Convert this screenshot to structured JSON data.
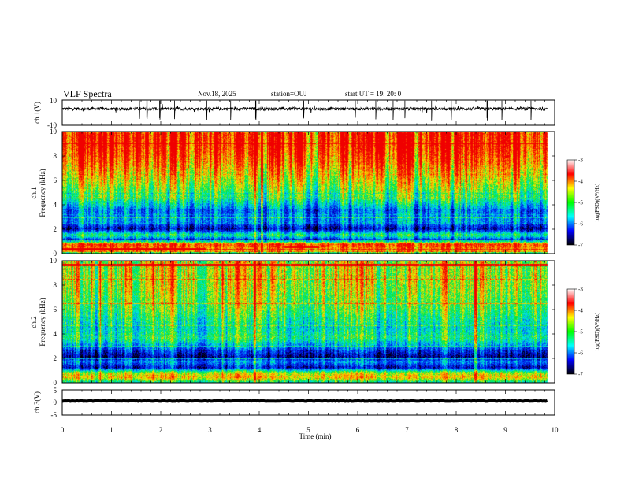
{
  "header": {
    "title": "VLF Spectra",
    "date": "Nov.18, 2025",
    "station": "station=OUJ",
    "start": "start  UT =   19: 20: 0"
  },
  "chart_data": [
    {
      "type": "line",
      "name": "ch1-waveform",
      "ylabel": "ch.1(V)",
      "ylim": [
        -10,
        10
      ],
      "yticks": [
        "10",
        "-10"
      ],
      "xlim": [
        0,
        10
      ],
      "baseline": 3.0,
      "noise_amplitude": 1.2,
      "spikes": [
        1.57,
        1.72,
        1.98,
        2.28,
        2.93,
        3.42,
        3.93,
        4.9,
        5.95,
        6.37,
        6.72,
        6.96,
        7.5,
        7.9,
        8.63,
        8.93,
        9.52
      ],
      "color": "#000000"
    },
    {
      "type": "heatmap",
      "name": "ch1-spectrogram",
      "ylabel": "ch.1\nFrequency (kHz)",
      "xlim": [
        0,
        10
      ],
      "ylim": [
        0,
        10
      ],
      "yticks": [
        "0",
        "2",
        "4",
        "6",
        "8",
        "10"
      ],
      "data_end_x": 9.85,
      "colorbar": {
        "label": "log(PSD)(V²/Hz)",
        "range": [
          -7,
          -3
        ],
        "ticks": [
          "-3",
          "-4",
          "-5",
          "-6",
          "-7"
        ],
        "stops": [
          "#ffffff",
          "#ff0000",
          "#ffff00",
          "#00ff00",
          "#00ffff",
          "#0000ff",
          "#000000"
        ]
      },
      "profile_hot": [
        [
          0,
          0.55
        ],
        [
          0.4,
          0.85
        ],
        [
          0.75,
          0.95
        ],
        [
          1.1,
          0.2
        ],
        [
          1.5,
          0.55
        ],
        [
          2.0,
          0.12
        ],
        [
          2.6,
          0.35
        ],
        [
          3.5,
          0.3
        ],
        [
          4.5,
          0.55
        ],
        [
          6.0,
          0.72
        ],
        [
          7.5,
          0.88
        ],
        [
          8.5,
          0.96
        ],
        [
          10.0,
          1.0
        ]
      ],
      "vertical_events": [
        3.9,
        4.05
      ],
      "hot_patches": [
        [
          0.0,
          2.9,
          0.2,
          0.45
        ],
        [
          4.5,
          5.2,
          0.4,
          0.6
        ]
      ]
    },
    {
      "type": "heatmap",
      "name": "ch2-spectrogram",
      "ylabel": "ch.2\nFrequency (kHz)",
      "xlim": [
        0,
        10
      ],
      "ylim": [
        0,
        10
      ],
      "yticks": [
        "0",
        "2",
        "4",
        "6",
        "8",
        "10"
      ],
      "data_end_x": 9.85,
      "colorbar": {
        "label": "log(PSD)(V²/Hz)",
        "range": [
          -7,
          -3
        ],
        "ticks": [
          "-3",
          "-4",
          "-5",
          "-6",
          "-7"
        ],
        "stops": [
          "#ffffff",
          "#ff0000",
          "#ffff00",
          "#00ff00",
          "#00ffff",
          "#0000ff",
          "#000000"
        ]
      },
      "profile_hot": [
        [
          0,
          0.5
        ],
        [
          0.4,
          0.8
        ],
        [
          0.8,
          0.7
        ],
        [
          1.2,
          0.15
        ],
        [
          1.7,
          0.35
        ],
        [
          2.1,
          0.1
        ],
        [
          2.8,
          0.3
        ],
        [
          3.6,
          0.55
        ],
        [
          4.5,
          0.48
        ],
        [
          6.0,
          0.62
        ],
        [
          8.0,
          0.72
        ],
        [
          10.0,
          0.74
        ]
      ],
      "vertical_events": [
        3.9,
        8.38
      ],
      "hot_patches": [
        [
          0.0,
          9.85,
          9.6,
          9.8
        ]
      ]
    },
    {
      "type": "line",
      "name": "ch3-waveform",
      "ylabel": "ch.3(V)",
      "ylim": [
        -5,
        5
      ],
      "yticks": [
        "5",
        "0",
        "-5"
      ],
      "xlim": [
        0,
        10
      ],
      "xticks": [
        "0",
        "1",
        "2",
        "3",
        "4",
        "5",
        "6",
        "7",
        "8",
        "9",
        "10"
      ],
      "xlabel": "Time  (min)",
      "baseline": 0.6,
      "noise_amplitude": 0.25,
      "color": "#000000"
    }
  ]
}
